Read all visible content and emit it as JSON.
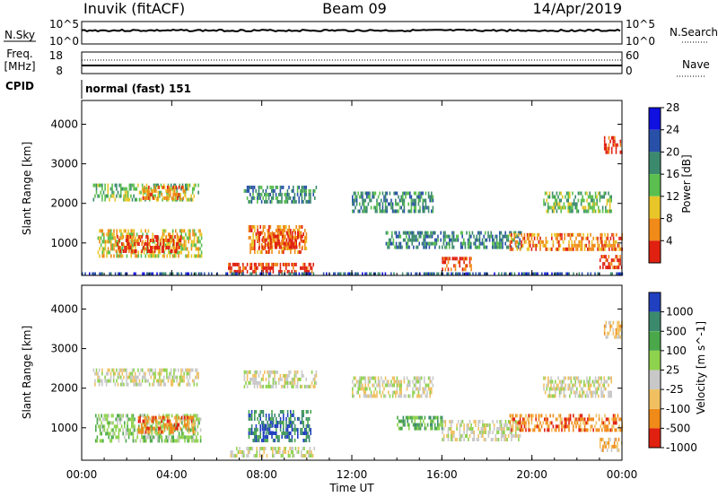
{
  "header": {
    "station": "Inuvik (fitACF)",
    "beam": "Beam 09",
    "date": "14/Apr/2019"
  },
  "nsky_panel": {
    "left_label": "N.Sky",
    "left_ticks": [
      "10^5",
      "10^0"
    ],
    "right_ticks": [
      "10^5",
      "10^0"
    ],
    "right_label": "N.Search"
  },
  "freq_panel": {
    "left_label_1": "Freq.",
    "left_label_2": "[MHz]",
    "left_ticks": [
      "18",
      "8"
    ],
    "right_ticks": [
      "60",
      "0"
    ],
    "right_label": "Nave"
  },
  "cpid": {
    "label": "CPID",
    "value": "normal (fast) 151"
  },
  "chart_data": [
    {
      "type": "heatmap",
      "panel": "power",
      "ylabel": "Slant Range [km]",
      "ylim": [
        180,
        4600
      ],
      "yticks": [
        "1000",
        "2000",
        "3000",
        "4000"
      ],
      "xlim": [
        0,
        24
      ],
      "colorbar_label": "Power [dB]",
      "colorbar_ticks": [
        "4",
        "8",
        "12",
        "16",
        "20",
        "24",
        "28"
      ],
      "colors": [
        "#1010e0",
        "#2850a8",
        "#3c8a6e",
        "#5abf4e",
        "#e8c628",
        "#f08a18",
        "#e02010"
      ],
      "regions": [
        {
          "t0": 0.5,
          "t1": 5.2,
          "r0": 2050,
          "r1": 2500,
          "level": 3
        },
        {
          "t0": 2.7,
          "t1": 4.6,
          "r0": 2150,
          "r1": 2450,
          "level": 5
        },
        {
          "t0": 0.7,
          "t1": 5.3,
          "r0": 700,
          "r1": 1350,
          "level": 4
        },
        {
          "t0": 1.5,
          "t1": 4.4,
          "r0": 750,
          "r1": 1200,
          "level": 6
        },
        {
          "t0": 6.5,
          "t1": 10.3,
          "r0": 250,
          "r1": 500,
          "level": 6
        },
        {
          "t0": 7.4,
          "t1": 10.0,
          "r0": 800,
          "r1": 1450,
          "level": 5
        },
        {
          "t0": 7.8,
          "t1": 9.8,
          "r0": 900,
          "r1": 1300,
          "level": 6
        },
        {
          "t0": 7.2,
          "t1": 10.4,
          "r0": 2050,
          "r1": 2450,
          "level": 2
        },
        {
          "t0": 12.0,
          "t1": 15.6,
          "r0": 1800,
          "r1": 2300,
          "level": 2
        },
        {
          "t0": 13.5,
          "t1": 19.5,
          "r0": 900,
          "r1": 1300,
          "level": 2
        },
        {
          "t0": 16.0,
          "t1": 17.3,
          "r0": 300,
          "r1": 650,
          "level": 6
        },
        {
          "t0": 19.0,
          "t1": 24.0,
          "r0": 850,
          "r1": 1250,
          "level": 5
        },
        {
          "t0": 20.5,
          "t1": 23.5,
          "r0": 1800,
          "r1": 2300,
          "level": 3
        },
        {
          "t0": 23.0,
          "t1": 24.0,
          "r0": 400,
          "r1": 700,
          "level": 6
        },
        {
          "t0": 23.2,
          "t1": 24.0,
          "r0": 3300,
          "r1": 3700,
          "level": 6
        },
        {
          "t0": 0.0,
          "t1": 24.0,
          "r0": 180,
          "r1": 260,
          "level": 1
        }
      ]
    },
    {
      "type": "heatmap",
      "panel": "velocity",
      "ylabel": "Slant Range [km]",
      "ylim": [
        180,
        4600
      ],
      "yticks": [
        "1000",
        "2000",
        "3000",
        "4000"
      ],
      "xlabel": "Time UT",
      "xticks": [
        "00:00",
        "04:00",
        "08:00",
        "12:00",
        "16:00",
        "20:00",
        "00:00"
      ],
      "xlim": [
        0,
        24
      ],
      "colorbar_label": "Velocity [m s^-1]",
      "colorbar_ticks": [
        "1000",
        "500",
        "100",
        "25",
        "-25",
        "-100",
        "-500",
        "-1000"
      ],
      "colors": [
        "#2040c0",
        "#3c8a6e",
        "#4aa84a",
        "#8fd24e",
        "#c8c8c8",
        "#f0c060",
        "#f08a18",
        "#e02010"
      ],
      "regions": [
        {
          "t0": 0.5,
          "t1": 5.2,
          "r0": 2050,
          "r1": 2500,
          "level": 4
        },
        {
          "t0": 0.6,
          "t1": 5.3,
          "r0": 700,
          "r1": 1350,
          "level": 3
        },
        {
          "t0": 2.5,
          "t1": 5.0,
          "r0": 850,
          "r1": 1300,
          "level": 6
        },
        {
          "t0": 7.4,
          "t1": 10.2,
          "r0": 700,
          "r1": 1450,
          "level": 1
        },
        {
          "t0": 8.0,
          "t1": 8.5,
          "r0": 900,
          "r1": 1100,
          "level": 0
        },
        {
          "t0": 6.6,
          "t1": 10.4,
          "r0": 250,
          "r1": 520,
          "level": 4
        },
        {
          "t0": 7.2,
          "t1": 10.4,
          "r0": 2050,
          "r1": 2450,
          "level": 4
        },
        {
          "t0": 12.0,
          "t1": 15.6,
          "r0": 1800,
          "r1": 2300,
          "level": 4
        },
        {
          "t0": 14.0,
          "t1": 16.0,
          "r0": 950,
          "r1": 1300,
          "level": 2
        },
        {
          "t0": 16.0,
          "t1": 19.5,
          "r0": 700,
          "r1": 1200,
          "level": 4
        },
        {
          "t0": 19.0,
          "t1": 24.0,
          "r0": 900,
          "r1": 1350,
          "level": 6
        },
        {
          "t0": 20.5,
          "t1": 23.5,
          "r0": 1800,
          "r1": 2300,
          "level": 4
        },
        {
          "t0": 23.0,
          "t1": 24.0,
          "r0": 400,
          "r1": 750,
          "level": 5
        },
        {
          "t0": 23.2,
          "t1": 24.0,
          "r0": 3300,
          "r1": 3700,
          "level": 5
        }
      ]
    }
  ]
}
